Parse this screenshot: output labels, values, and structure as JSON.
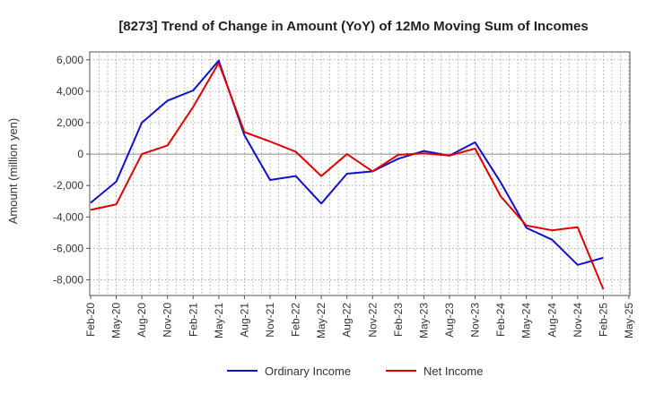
{
  "chart_data": {
    "type": "line",
    "title": "[8273]  Trend of Change in Amount (YoY) of 12Mo Moving Sum of Incomes",
    "ylabel": "Amount (million yen)",
    "xlabel": "",
    "ylim": [
      -9000,
      6500
    ],
    "yticks": [
      6000,
      4000,
      2000,
      0,
      -2000,
      -4000,
      -6000,
      -8000
    ],
    "ytick_labels": [
      "6,000",
      "4,000",
      "2,000",
      "0",
      "-2,000",
      "-4,000",
      "-6,000",
      "-8,000"
    ],
    "x_tick_labels": [
      "Feb-20",
      "May-20",
      "Aug-20",
      "Nov-20",
      "Feb-21",
      "May-21",
      "Aug-21",
      "Nov-21",
      "Feb-22",
      "May-22",
      "Aug-22",
      "Nov-22",
      "Feb-23",
      "May-23",
      "Aug-23",
      "Nov-23",
      "Feb-24",
      "May-24",
      "Aug-24",
      "Nov-24",
      "Feb-25",
      "May-25"
    ],
    "grid": true,
    "legend_position": "bottom-center",
    "series": [
      {
        "name": "Ordinary Income",
        "color": "#1010d0",
        "values": [
          -3100,
          -1750,
          2000,
          3400,
          4050,
          5950,
          1200,
          -1650,
          -1400,
          -3150,
          -1250,
          -1100,
          -300,
          200,
          -100,
          750,
          -1800,
          -4700,
          -5450,
          -7050,
          -6600,
          null
        ]
      },
      {
        "name": "Net Income",
        "color": "#e00000",
        "values": [
          -3550,
          -3200,
          0,
          550,
          3000,
          5800,
          1400,
          800,
          150,
          -1400,
          0,
          -1100,
          -50,
          50,
          -100,
          350,
          -2700,
          -4550,
          -4850,
          -4650,
          -8600,
          null
        ]
      }
    ]
  }
}
